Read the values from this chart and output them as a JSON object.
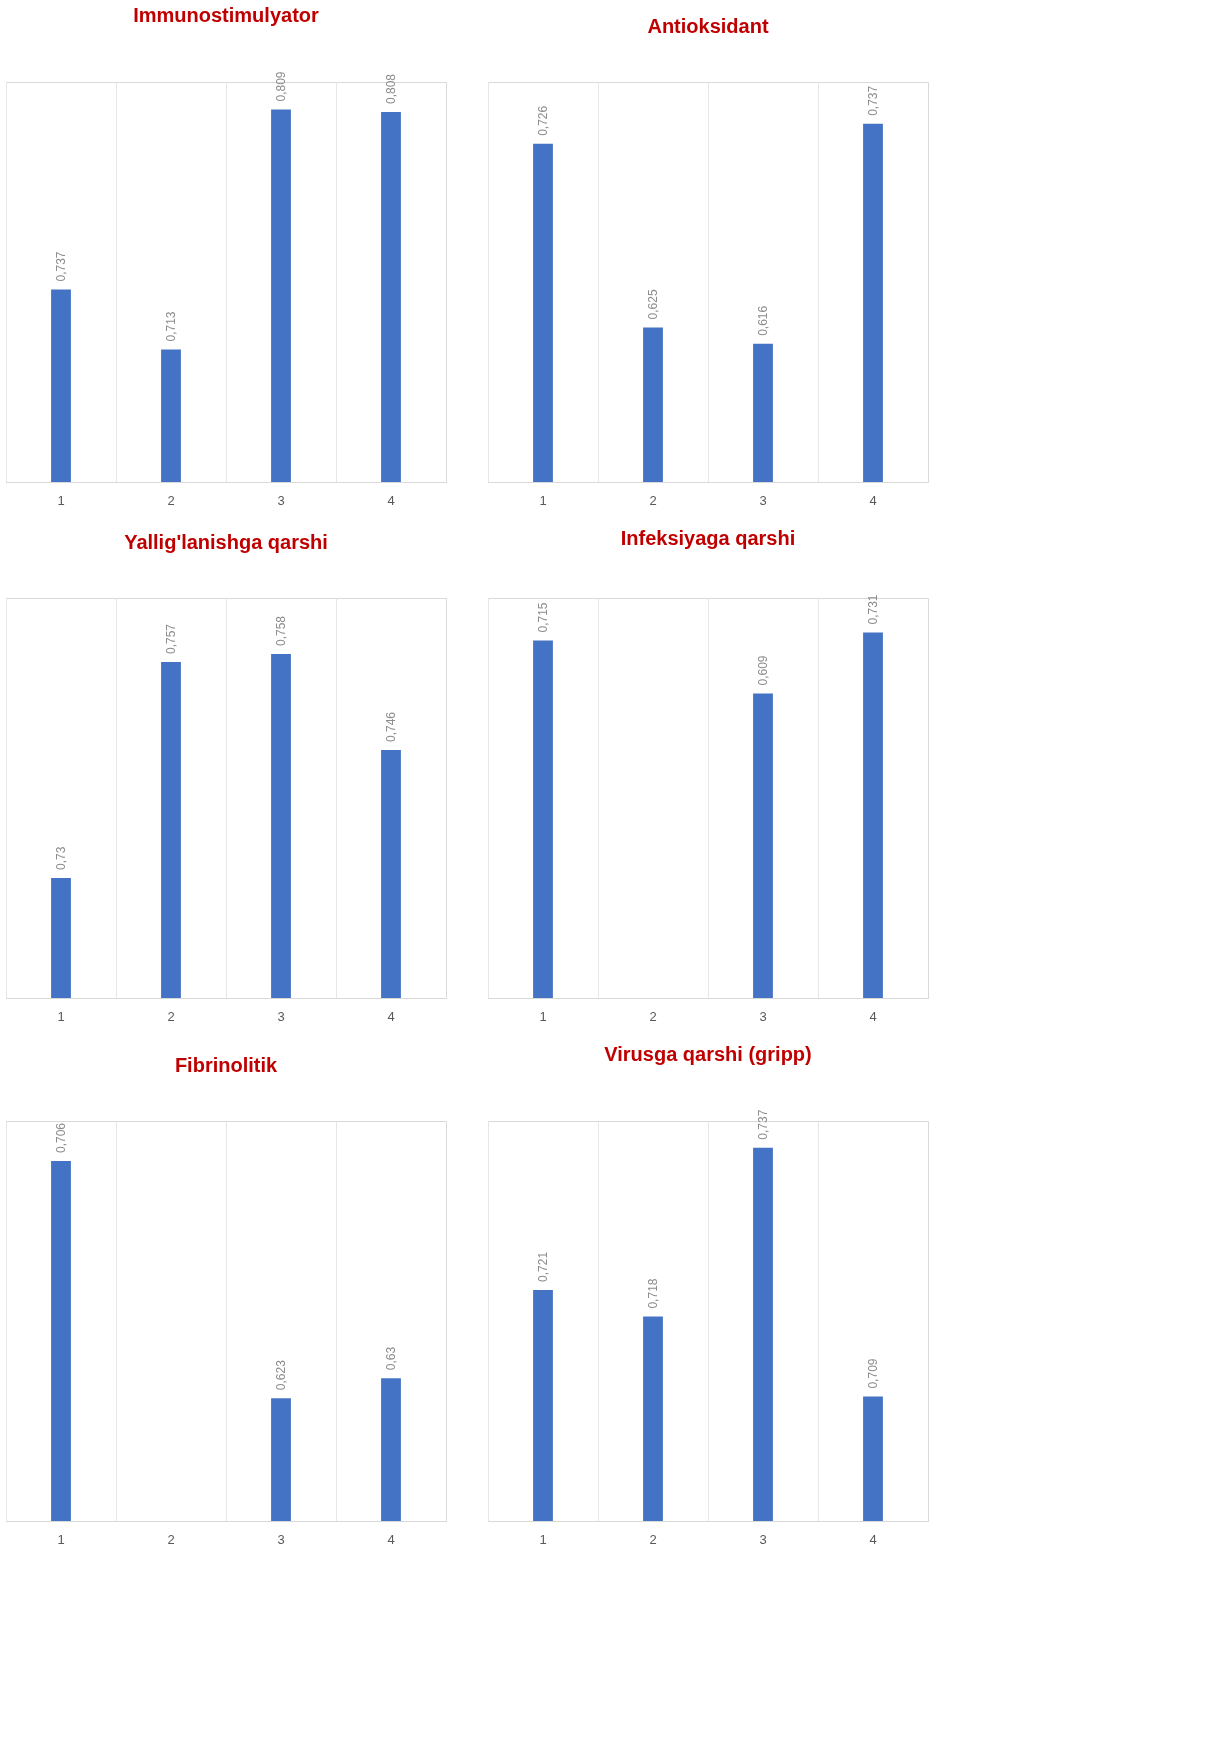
{
  "chart_data": [
    {
      "type": "bar",
      "title": "Immunostimulyator",
      "categories": [
        "1",
        "2",
        "3",
        "4"
      ],
      "series": [
        {
          "color": "#4472c4",
          "values": [
            0.737,
            0.713,
            0.809,
            0.808
          ],
          "value_labels": [
            "0,737",
            "0,713",
            "0,809",
            "0,808"
          ]
        }
      ],
      "ylim": [
        0.66,
        0.82
      ],
      "grid": "x",
      "tick_labels": "x"
    },
    {
      "type": "bar",
      "title": "Antioksidant",
      "categories": [
        "1",
        "2",
        "3",
        "4"
      ],
      "series": [
        {
          "color": "#4472c4",
          "values": [
            0.726,
            0.625,
            0.616,
            0.737
          ],
          "value_labels": [
            "0,726",
            "0,625",
            "0,616",
            "0,737"
          ]
        }
      ],
      "ylim": [
        0.54,
        0.76
      ],
      "grid": "x",
      "tick_labels": "x"
    },
    {
      "type": "bar",
      "title": "Yallig'lanishga qarshi",
      "categories": [
        "1",
        "2",
        "3",
        "4"
      ],
      "series": [
        {
          "color": "#4472c4",
          "values": [
            0.73,
            0.757,
            0.758,
            0.746
          ],
          "value_labels": [
            "0,73",
            "0,757",
            "0,758",
            "0,746"
          ]
        }
      ],
      "ylim": [
        0.715,
        0.765
      ],
      "grid": "x",
      "tick_labels": "x"
    },
    {
      "type": "bar",
      "title": "Infeksiyaga qarshi",
      "categories": [
        "1",
        "2",
        "3",
        "4"
      ],
      "series": [
        {
          "color": "#4472c4",
          "values": [
            0.715,
            null,
            0.609,
            0.731
          ],
          "value_labels": [
            "0,715",
            null,
            "0,609",
            "0,731"
          ]
        }
      ],
      "ylim": [
        0,
        0.8
      ],
      "grid": "x",
      "tick_labels": "x"
    },
    {
      "type": "bar",
      "title": "Fibrinolitik",
      "categories": [
        "1",
        "2",
        "3",
        "4"
      ],
      "series": [
        {
          "color": "#4472c4",
          "values": [
            0.706,
            null,
            0.623,
            0.63
          ],
          "value_labels": [
            "0,706",
            null,
            "0,623",
            "0,63"
          ]
        }
      ],
      "ylim": [
        0.58,
        0.72
      ],
      "grid": "x",
      "tick_labels": "x"
    },
    {
      "type": "bar",
      "title": "Virusga qarshi (gripp)",
      "categories": [
        "1",
        "2",
        "3",
        "4"
      ],
      "series": [
        {
          "color": "#4472c4",
          "values": [
            0.721,
            0.718,
            0.737,
            0.709
          ],
          "value_labels": [
            "0,721",
            "0,718",
            "0,737",
            "0,709"
          ]
        }
      ],
      "ylim": [
        0.695,
        0.74
      ],
      "grid": "x",
      "tick_labels": "x"
    }
  ]
}
